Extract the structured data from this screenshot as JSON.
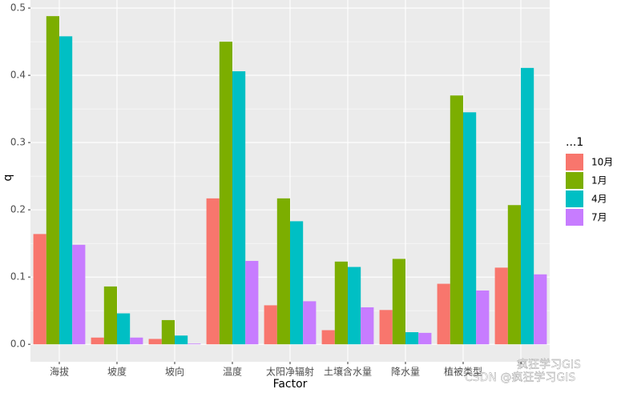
{
  "chart_data": {
    "type": "bar",
    "x_label": "Factor",
    "y_label": "q",
    "categories": [
      "海拔",
      "坡度",
      "坡向",
      "温度",
      "太阳净辐射",
      "土壤含水量",
      "降水量",
      "植被类型",
      null
    ],
    "series": [
      {
        "name": "10月",
        "color": "#F8766D",
        "values": [
          0.164,
          0.01,
          0.008,
          0.217,
          0.058,
          0.021,
          0.051,
          0.09,
          0.114
        ]
      },
      {
        "name": "1月",
        "color": "#7CAE00",
        "values": [
          0.488,
          0.086,
          0.036,
          0.45,
          0.217,
          0.123,
          0.127,
          0.37,
          0.207
        ]
      },
      {
        "name": "4月",
        "color": "#00BFC4",
        "values": [
          0.458,
          0.046,
          0.013,
          0.406,
          0.183,
          0.115,
          0.018,
          0.345,
          0.411
        ]
      },
      {
        "name": "7月",
        "color": "#C77CFF",
        "values": [
          0.148,
          0.01,
          0.001,
          0.124,
          0.064,
          0.055,
          0.017,
          0.08,
          0.104
        ]
      }
    ],
    "legend_title": "...1",
    "legend_position": "right",
    "ylim": [
      -0.026,
      0.512
    ],
    "yticks": [
      {
        "value": 0,
        "label": "0.0"
      },
      0.1,
      0.2,
      0.3,
      0.4,
      0.5
    ],
    "grid": true,
    "watermark": [
      "疯狂学习GIS",
      "CSDN @疯狂学习GIS"
    ]
  }
}
